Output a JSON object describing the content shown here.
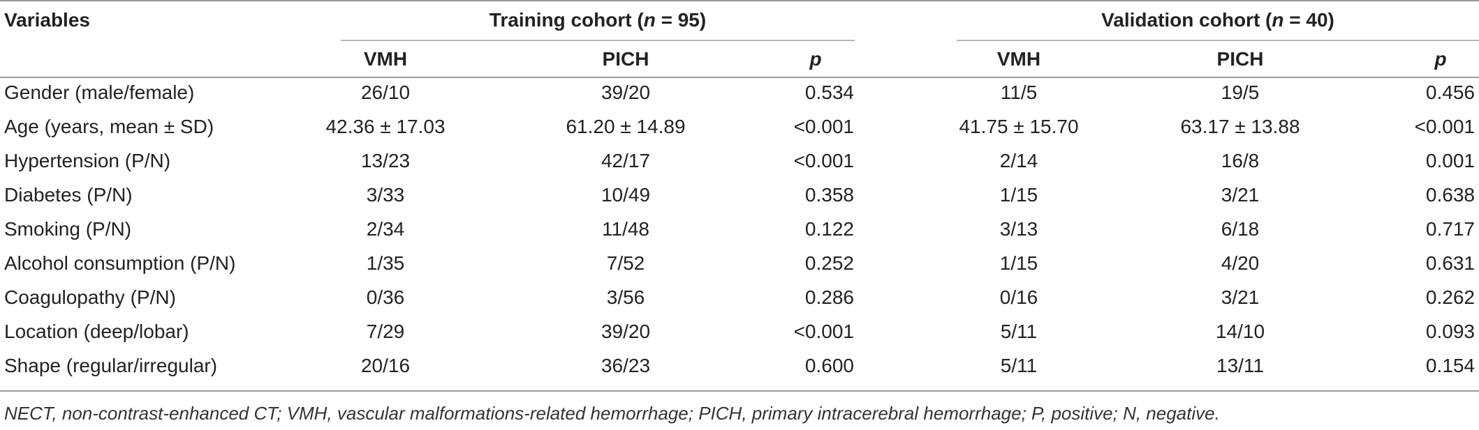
{
  "table": {
    "header_variables": "Variables",
    "groups": [
      {
        "label_prefix": "Training cohort (",
        "label_var": "n",
        "label_suffix": " = 95)"
      },
      {
        "label_prefix": "Validation cohort (",
        "label_var": "n",
        "label_suffix": " = 40)"
      }
    ],
    "subheaders": [
      "VMH",
      "PICH",
      "p",
      "VMH",
      "PICH",
      "p"
    ],
    "rows": [
      {
        "variable": "Gender (male/female)",
        "values": [
          "26/10",
          "39/20",
          "0.534",
          "11/5",
          "19/5",
          "0.456"
        ]
      },
      {
        "variable": "Age (years, mean ± SD)",
        "values": [
          "42.36 ± 17.03",
          "61.20 ± 14.89",
          "<0.001",
          "41.75 ± 15.70",
          "63.17 ± 13.88",
          "<0.001"
        ]
      },
      {
        "variable": "Hypertension (P/N)",
        "values": [
          "13/23",
          "42/17",
          "<0.001",
          "2/14",
          "16/8",
          "0.001"
        ]
      },
      {
        "variable": "Diabetes (P/N)",
        "values": [
          "3/33",
          "10/49",
          "0.358",
          "1/15",
          "3/21",
          "0.638"
        ]
      },
      {
        "variable": "Smoking (P/N)",
        "values": [
          "2/34",
          "11/48",
          "0.122",
          "3/13",
          "6/18",
          "0.717"
        ]
      },
      {
        "variable": "Alcohol consumption (P/N)",
        "values": [
          "1/35",
          "7/52",
          "0.252",
          "1/15",
          "4/20",
          "0.631"
        ]
      },
      {
        "variable": "Coagulopathy (P/N)",
        "values": [
          "0/36",
          "3/56",
          "0.286",
          "0/16",
          "3/21",
          "0.262"
        ]
      },
      {
        "variable": "Location (deep/lobar)",
        "values": [
          "7/29",
          "39/20",
          "<0.001",
          "5/11",
          "14/10",
          "0.093"
        ]
      },
      {
        "variable": "Shape (regular/irregular)",
        "values": [
          "20/16",
          "36/23",
          "0.600",
          "5/11",
          "13/11",
          "0.154"
        ]
      }
    ]
  },
  "footnote": "NECT, non-contrast-enhanced CT; VMH, vascular malformations-related hemorrhage; PICH, primary intracerebral hemorrhage; P, positive; N, negative."
}
